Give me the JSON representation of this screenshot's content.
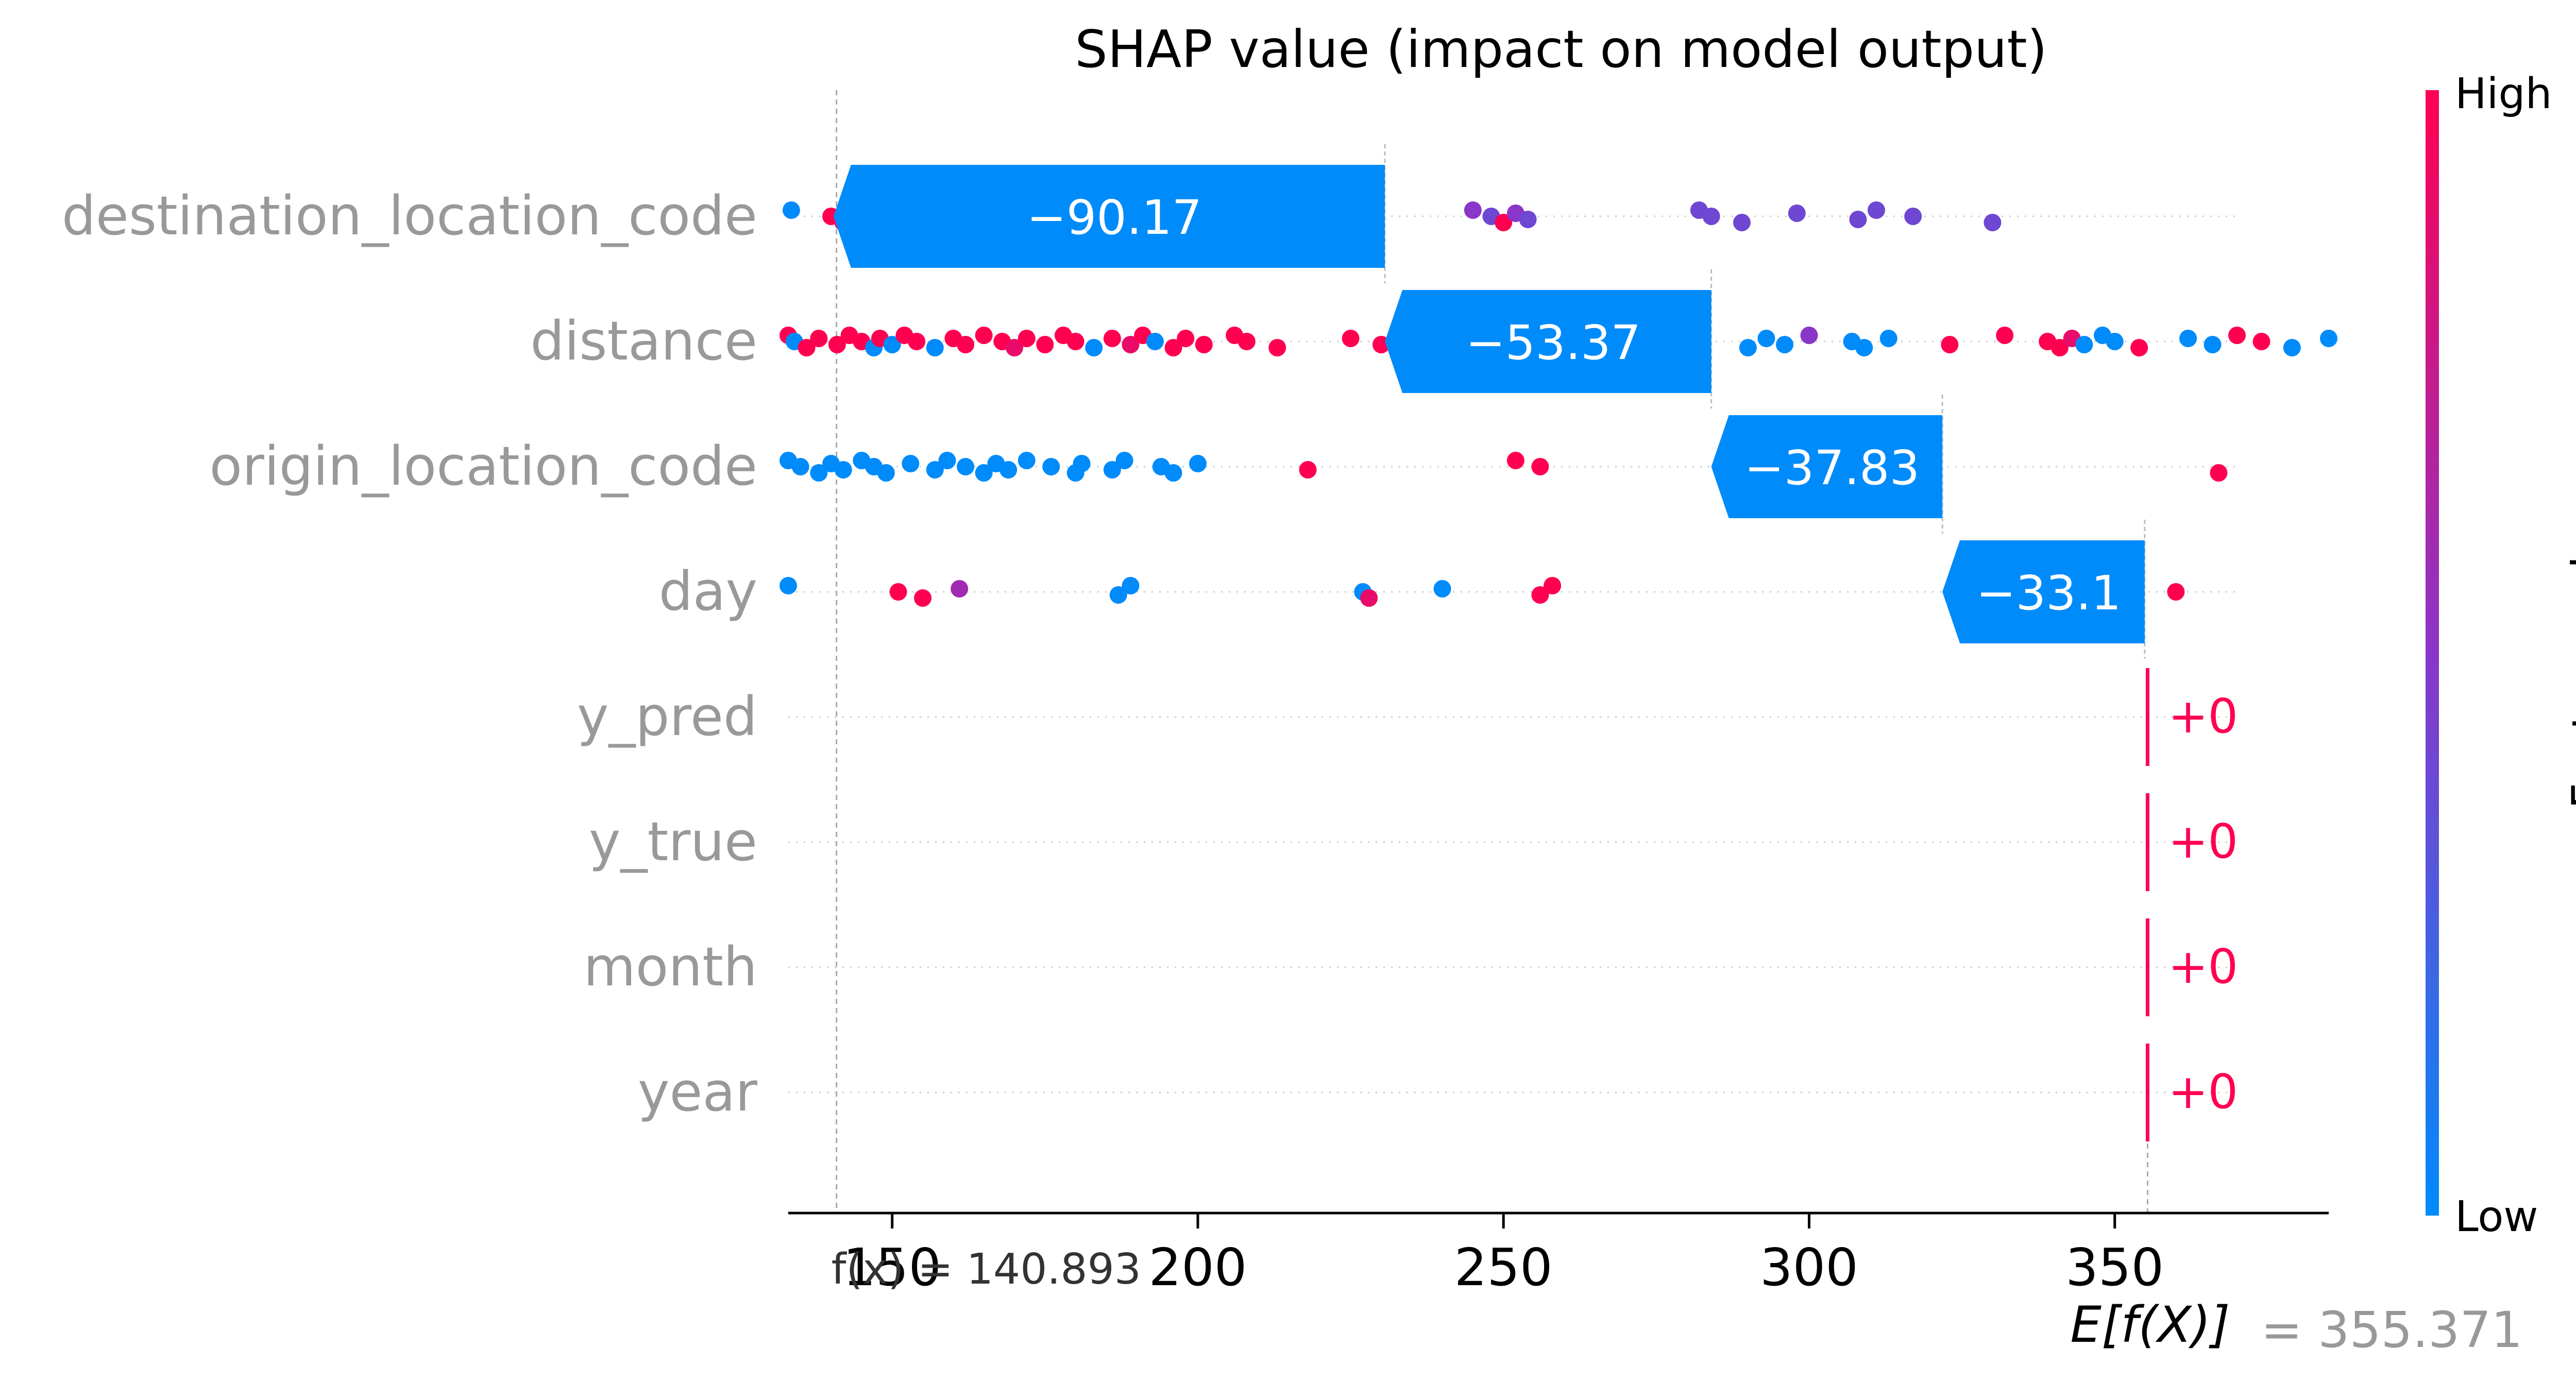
{
  "chart_data": {
    "type": "waterfall-beeswarm",
    "title": "SHAP value (impact on model output)",
    "xlabel": "",
    "xlim": [
      133,
      385
    ],
    "xticks": [
      150,
      200,
      250,
      300,
      350
    ],
    "tick_labels": [
      "150",
      "200",
      "250",
      "300",
      "350"
    ],
    "base_value": 355.371,
    "base_label_prefix": "E[f(X)]",
    "base_label_value": "= 355.371",
    "fx_value": 140.893,
    "fx_label": "f(x) = 140.893",
    "colorbar": {
      "label": "Feature value",
      "high": "High",
      "low": "Low",
      "color_low": "#008bfb",
      "color_high": "#ff0051"
    },
    "features": [
      {
        "name": "destination_location_code",
        "contribution": -90.17,
        "contribution_label": "−90.17",
        "start": 230.6,
        "end": 140.4,
        "points": [
          [
            133.5,
            0
          ],
          [
            140,
            1
          ],
          [
            142,
            1
          ],
          [
            144,
            1
          ],
          [
            152,
            1
          ],
          [
            163,
            1
          ],
          [
            167,
            1
          ],
          [
            168,
            1
          ],
          [
            173,
            1
          ],
          [
            178,
            1
          ],
          [
            186,
            1
          ],
          [
            188,
            1
          ],
          [
            192,
            1
          ],
          [
            193,
            1
          ],
          [
            202,
            0.7
          ],
          [
            205,
            0.6
          ],
          [
            208,
            1
          ],
          [
            213,
            1
          ],
          [
            215,
            1
          ],
          [
            217,
            1
          ],
          [
            245,
            0.5
          ],
          [
            248,
            0.4
          ],
          [
            250,
            1
          ],
          [
            252,
            0.5
          ],
          [
            254,
            0.4
          ],
          [
            282,
            0.4
          ],
          [
            284,
            0.4
          ],
          [
            289,
            0.4
          ],
          [
            298,
            0.4
          ],
          [
            308,
            0.4
          ],
          [
            311,
            0.4
          ],
          [
            317,
            0.4
          ],
          [
            330,
            0.4
          ]
        ]
      },
      {
        "name": "distance",
        "contribution": -53.37,
        "contribution_label": "−53.37",
        "start": 284.0,
        "end": 230.6,
        "points": [
          [
            133,
            1
          ],
          [
            134,
            0
          ],
          [
            136,
            1
          ],
          [
            138,
            1
          ],
          [
            141,
            1
          ],
          [
            143,
            1
          ],
          [
            145,
            1
          ],
          [
            147,
            0
          ],
          [
            148,
            1
          ],
          [
            150,
            0
          ],
          [
            152,
            1
          ],
          [
            154,
            1
          ],
          [
            157,
            0
          ],
          [
            160,
            1
          ],
          [
            162,
            1
          ],
          [
            165,
            1
          ],
          [
            168,
            1
          ],
          [
            170,
            0.9
          ],
          [
            172,
            1
          ],
          [
            175,
            1
          ],
          [
            178,
            1
          ],
          [
            180,
            1
          ],
          [
            183,
            0
          ],
          [
            186,
            1
          ],
          [
            189,
            0.9
          ],
          [
            191,
            1
          ],
          [
            193,
            0
          ],
          [
            196,
            1
          ],
          [
            198,
            1
          ],
          [
            201,
            1
          ],
          [
            206,
            1
          ],
          [
            208,
            1
          ],
          [
            213,
            1
          ],
          [
            225,
            1
          ],
          [
            230,
            1
          ],
          [
            234,
            0
          ],
          [
            236,
            0
          ],
          [
            240,
            0
          ],
          [
            242,
            0
          ],
          [
            244,
            1
          ],
          [
            246,
            0
          ],
          [
            248,
            0
          ],
          [
            251,
            1
          ],
          [
            256,
            1
          ],
          [
            260,
            0
          ],
          [
            264,
            1
          ],
          [
            268,
            1
          ],
          [
            290,
            0
          ],
          [
            293,
            0
          ],
          [
            296,
            0
          ],
          [
            300,
            0.5
          ],
          [
            307,
            0
          ],
          [
            309,
            0
          ],
          [
            313,
            0
          ],
          [
            323,
            1
          ],
          [
            332,
            1
          ],
          [
            339,
            1
          ],
          [
            341,
            1
          ],
          [
            343,
            0.9
          ],
          [
            345,
            0
          ],
          [
            348,
            0
          ],
          [
            350,
            0
          ],
          [
            354,
            1
          ],
          [
            362,
            0
          ],
          [
            366,
            0
          ],
          [
            370,
            1
          ],
          [
            374,
            1
          ],
          [
            379,
            0
          ],
          [
            385,
            0
          ]
        ]
      },
      {
        "name": "origin_location_code",
        "contribution": -37.83,
        "contribution_label": "−37.83",
        "start": 321.8,
        "end": 284.0,
        "points": [
          [
            133,
            0
          ],
          [
            135,
            0
          ],
          [
            138,
            0
          ],
          [
            140,
            0
          ],
          [
            142,
            0
          ],
          [
            145,
            0
          ],
          [
            147,
            0
          ],
          [
            149,
            0
          ],
          [
            153,
            0
          ],
          [
            157,
            0
          ],
          [
            159,
            0
          ],
          [
            162,
            0
          ],
          [
            165,
            0
          ],
          [
            167,
            0
          ],
          [
            169,
            0
          ],
          [
            172,
            0
          ],
          [
            176,
            0
          ],
          [
            180,
            0
          ],
          [
            181,
            0
          ],
          [
            186,
            0
          ],
          [
            188,
            0
          ],
          [
            194,
            0
          ],
          [
            196,
            0
          ],
          [
            200,
            0
          ],
          [
            218,
            1
          ],
          [
            252,
            1
          ],
          [
            256,
            1
          ],
          [
            367,
            1
          ]
        ]
      },
      {
        "name": "day",
        "contribution": -33.1,
        "contribution_label": "−33.1",
        "start": 354.9,
        "end": 321.8,
        "points": [
          [
            133,
            0
          ],
          [
            151,
            1
          ],
          [
            155,
            1
          ],
          [
            161,
            0.6
          ],
          [
            187,
            0
          ],
          [
            189,
            0
          ],
          [
            227,
            0
          ],
          [
            228,
            0.9
          ],
          [
            240,
            0
          ],
          [
            256,
            1
          ],
          [
            258,
            1
          ],
          [
            360,
            1
          ]
        ]
      },
      {
        "name": "y_pred",
        "contribution": 0,
        "contribution_label": "+0",
        "start": 355.371,
        "end": 355.371,
        "points": []
      },
      {
        "name": "y_true",
        "contribution": 0,
        "contribution_label": "+0",
        "start": 355.371,
        "end": 355.371,
        "points": []
      },
      {
        "name": "month",
        "contribution": 0,
        "contribution_label": "+0",
        "start": 355.371,
        "end": 355.371,
        "points": []
      },
      {
        "name": "year",
        "contribution": 0,
        "contribution_label": "+0",
        "start": 355.371,
        "end": 355.371,
        "points": []
      }
    ]
  }
}
